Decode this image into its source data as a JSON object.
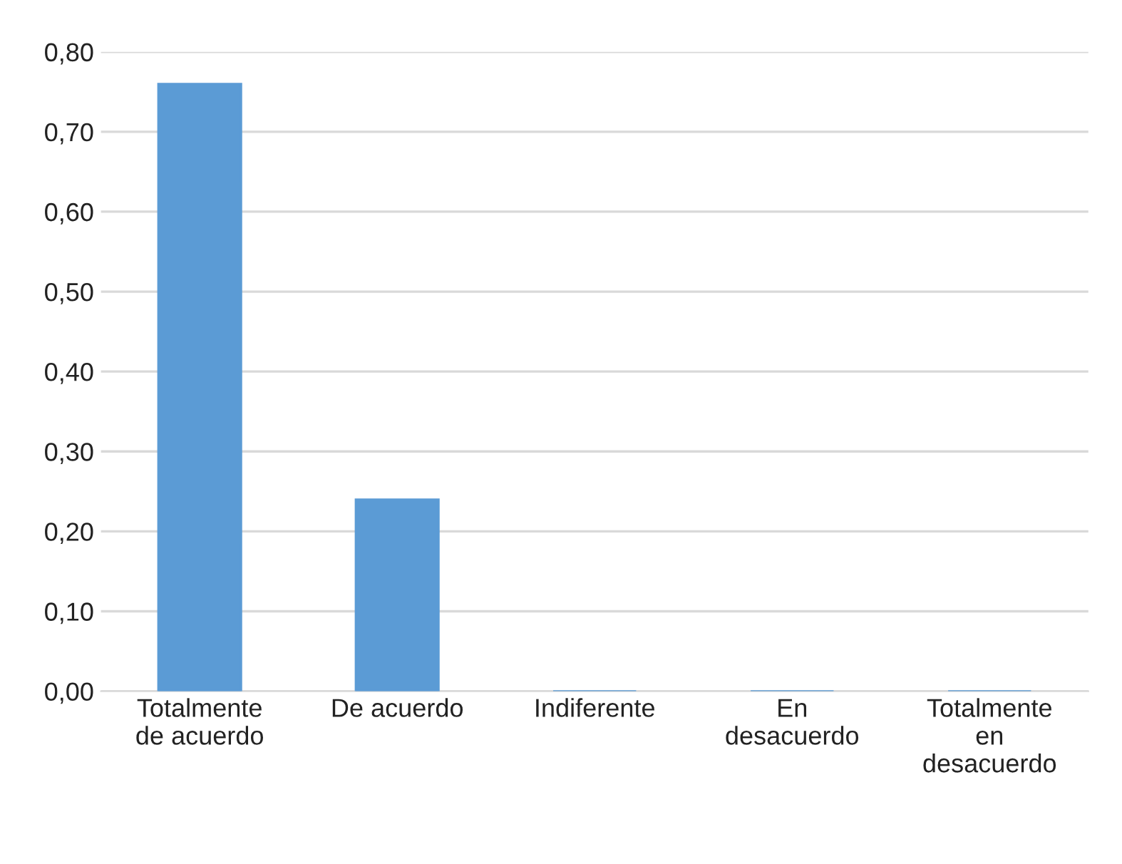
{
  "chart_data": {
    "type": "bar",
    "categories": [
      "Totalmente\nde acuerdo",
      "De acuerdo",
      "Indiferente",
      "En\ndesacuerdo",
      "Totalmente\nen\ndesacuerdo"
    ],
    "values": [
      0.76,
      0.24,
      0,
      0,
      0
    ],
    "color": "#5b9bd5",
    "ylim": [
      0,
      0.8
    ],
    "yticks": [
      {
        "value": 0,
        "label": "0,00"
      },
      {
        "value": 0.1,
        "label": "0,10"
      },
      {
        "value": 0.2,
        "label": "0,20"
      },
      {
        "value": 0.3,
        "label": "0,30"
      },
      {
        "value": 0.4,
        "label": "0,40"
      },
      {
        "value": 0.5,
        "label": "0,50"
      },
      {
        "value": 0.6,
        "label": "0,60"
      },
      {
        "value": 0.7,
        "label": "0,70"
      },
      {
        "value": 0.8,
        "label": "0,80"
      }
    ],
    "grid": "y",
    "legend": false
  }
}
